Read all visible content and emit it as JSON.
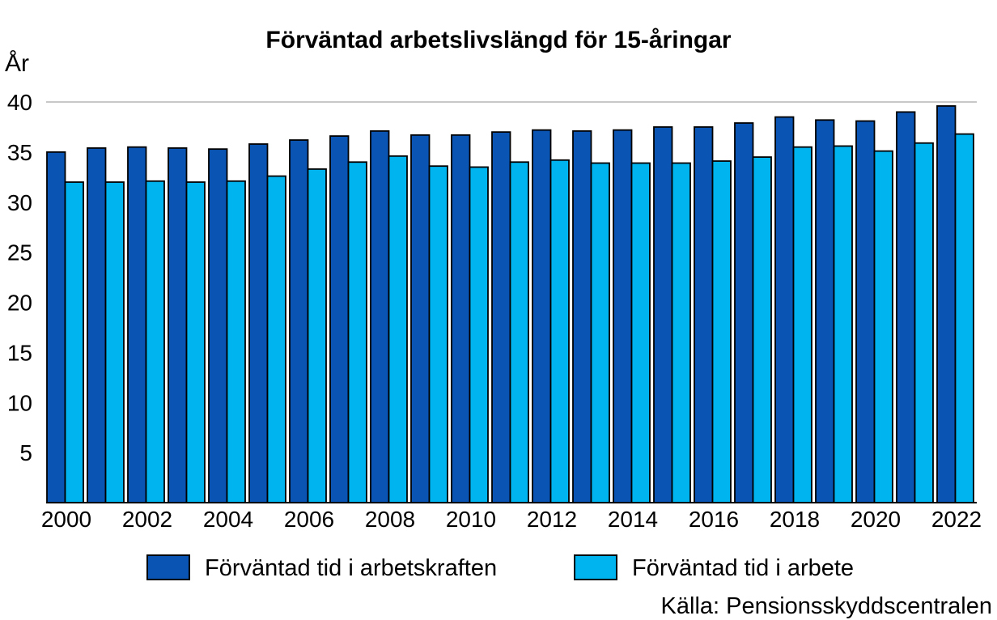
{
  "chart_data": {
    "type": "bar",
    "title": "Förväntad arbetslivslängd för 15-åringar",
    "ylabel": "År",
    "xlabel": "",
    "ylim": [
      0,
      40
    ],
    "yticks": [
      5,
      10,
      15,
      20,
      25,
      30,
      35,
      40
    ],
    "grid": "top-line-only",
    "legend_position": "bottom",
    "categories": [
      2000,
      2001,
      2002,
      2003,
      2004,
      2005,
      2006,
      2007,
      2008,
      2009,
      2010,
      2011,
      2012,
      2013,
      2014,
      2015,
      2016,
      2017,
      2018,
      2019,
      2020,
      2021,
      2022
    ],
    "xtick_labels": [
      "2000",
      "2002",
      "2004",
      "2006",
      "2008",
      "2010",
      "2012",
      "2014",
      "2016",
      "2018",
      "2020",
      "2022"
    ],
    "series": [
      {
        "name": "Förväntad tid i arbetskraften",
        "color": "#0a55b4",
        "values": [
          35.0,
          35.4,
          35.5,
          35.4,
          35.3,
          35.8,
          36.2,
          36.6,
          37.1,
          36.7,
          36.7,
          37.0,
          37.2,
          37.1,
          37.2,
          37.5,
          37.5,
          37.9,
          38.5,
          38.2,
          38.1,
          39.0,
          39.6
        ]
      },
      {
        "name": "Förväntad tid i arbete",
        "color": "#00b4f0",
        "values": [
          32.0,
          32.0,
          32.1,
          32.0,
          32.1,
          32.6,
          33.3,
          34.0,
          34.6,
          33.6,
          33.5,
          34.0,
          34.2,
          33.9,
          33.9,
          33.9,
          34.1,
          34.5,
          35.5,
          35.6,
          35.1,
          35.9,
          36.8
        ]
      }
    ],
    "source": "Källa: Pensionsskyddscentralen"
  }
}
